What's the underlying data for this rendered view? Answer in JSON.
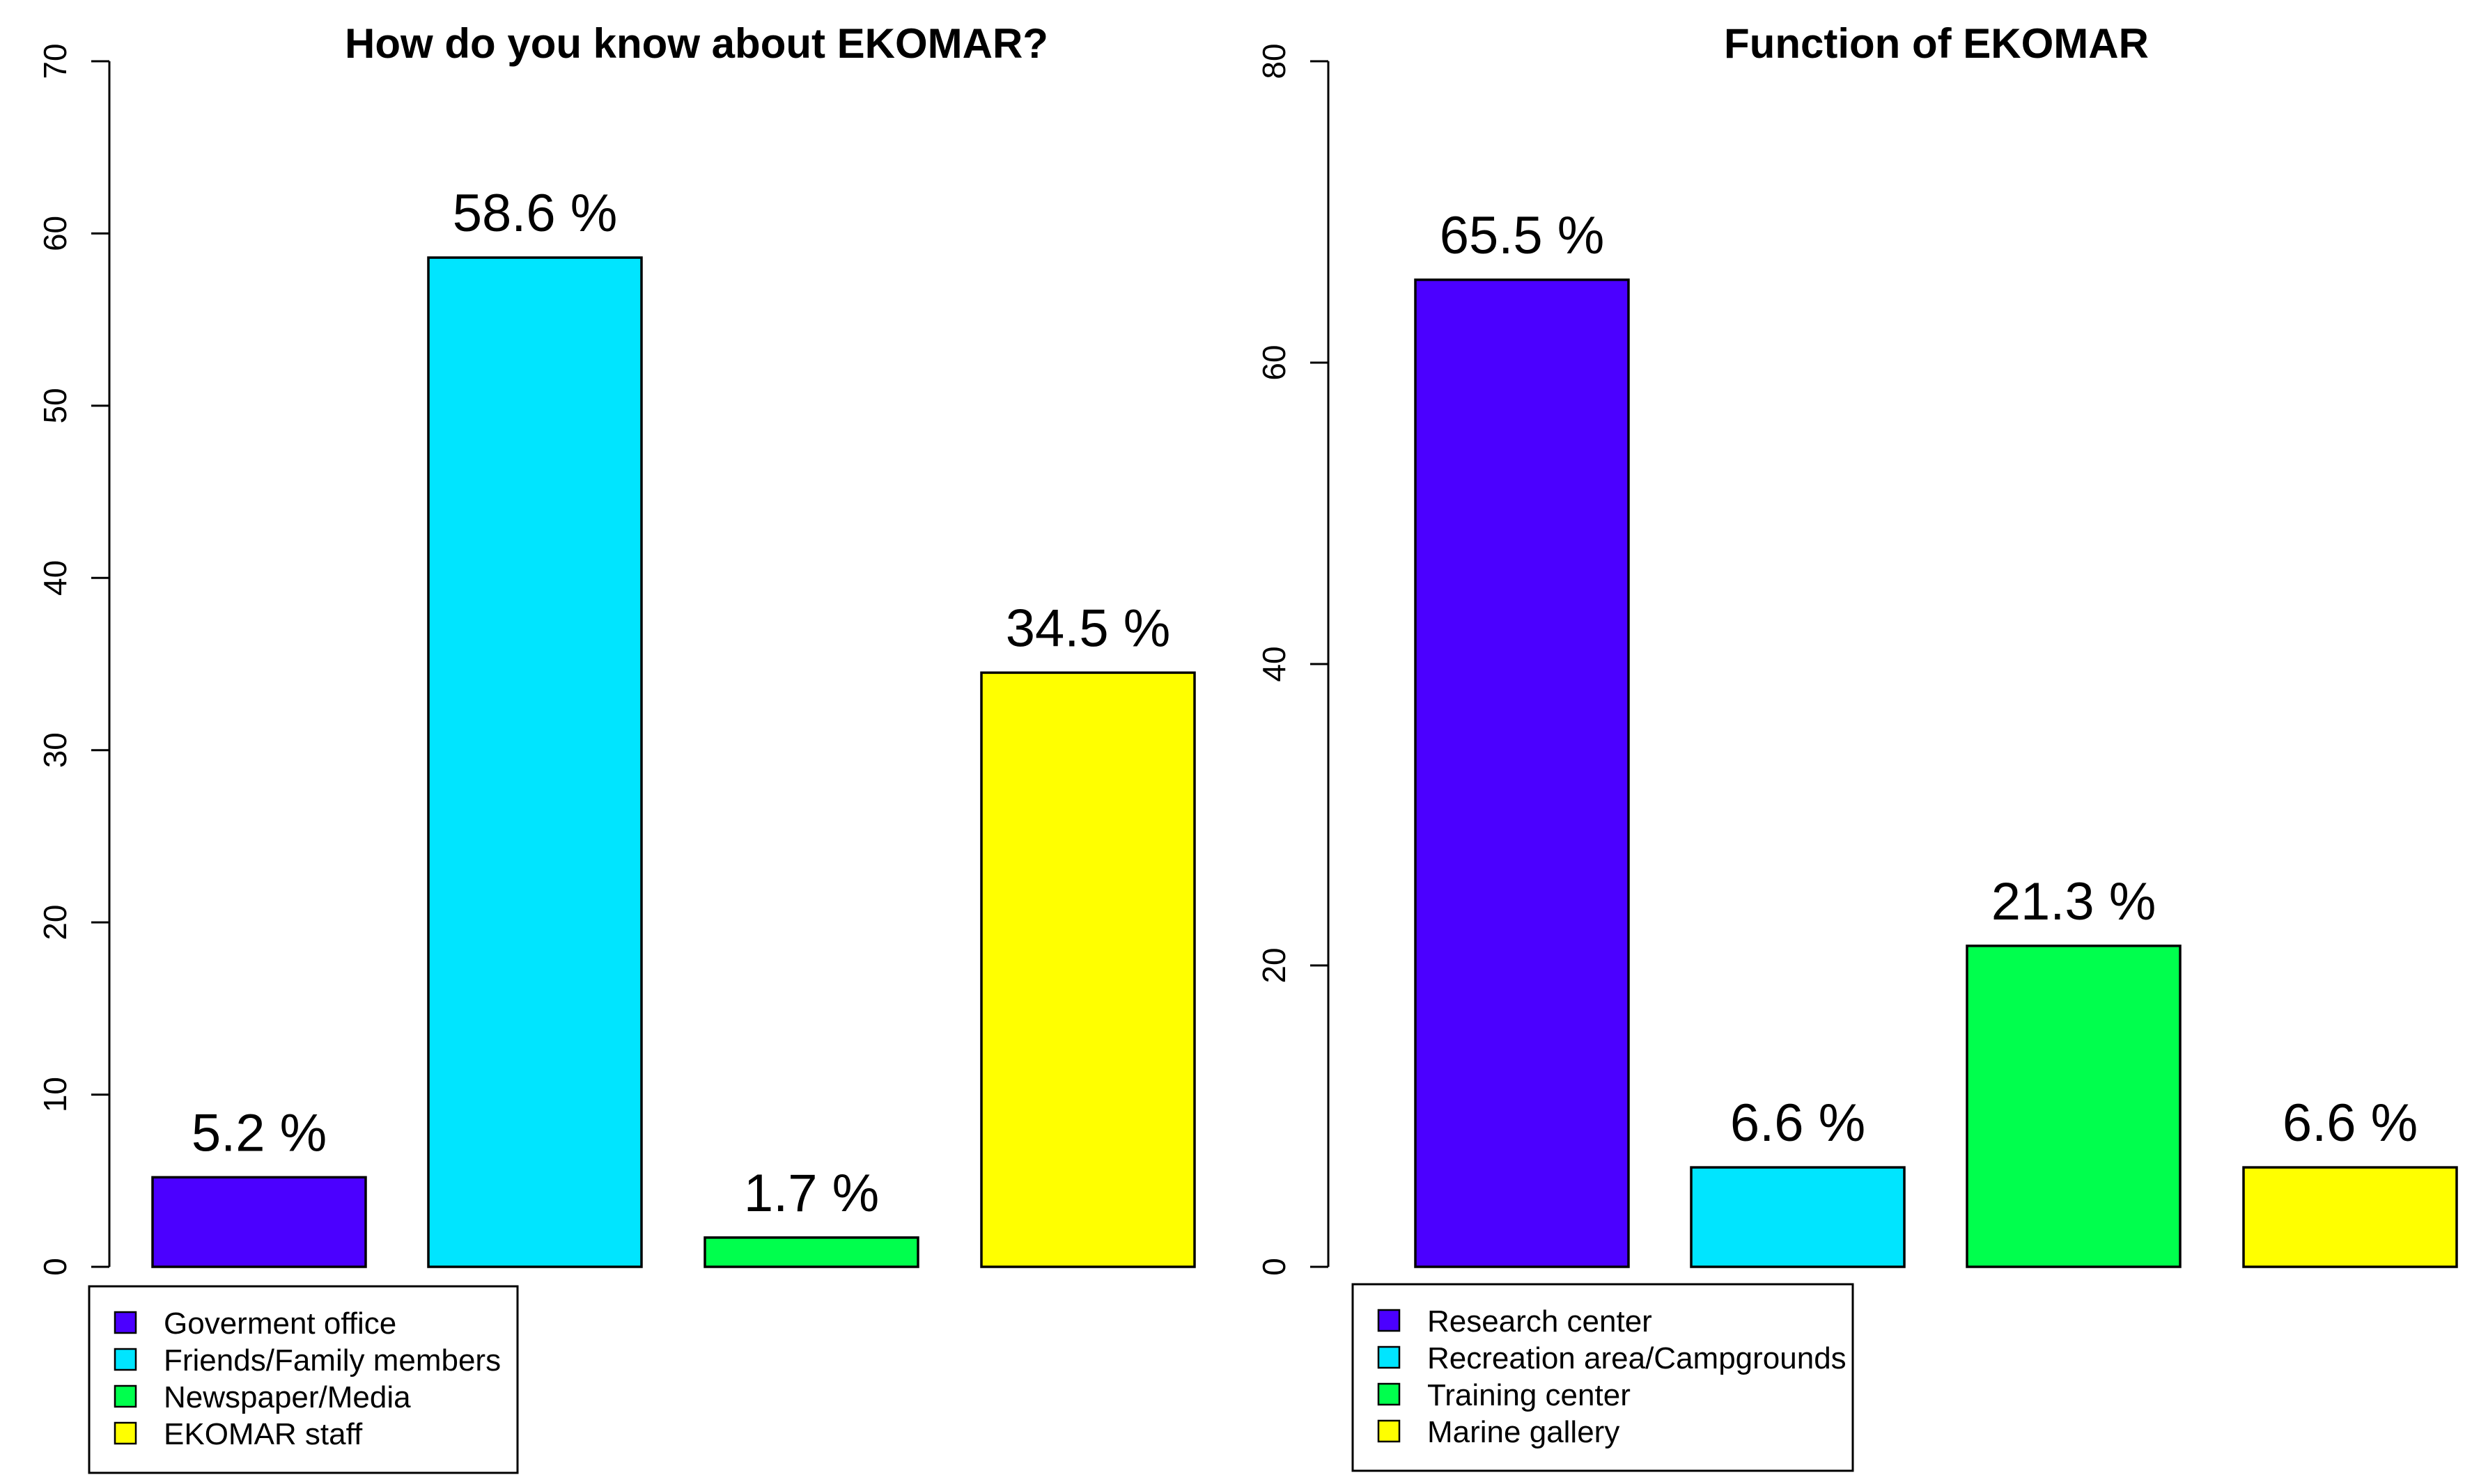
{
  "chart_data": [
    {
      "type": "bar",
      "title": "How do you know about EKOMAR?",
      "categories": [
        "Goverment office",
        "Friends/Family members",
        "Newspaper/Media",
        "EKOMAR staff"
      ],
      "values": [
        5.2,
        58.6,
        1.7,
        34.5
      ],
      "data_labels": [
        "5.2 %",
        "58.6 %",
        "1.7 %",
        "34.5 %"
      ],
      "colors": [
        "#4B00FF",
        "#00E5FF",
        "#00FF4D",
        "#FFFF00"
      ],
      "ylim": [
        0,
        70
      ],
      "yticks": [
        0,
        10,
        20,
        30,
        40,
        50,
        60,
        70
      ],
      "xlabel": "",
      "ylabel": "",
      "legend": {
        "position": "bottom-left",
        "entries": [
          "Goverment office",
          "Friends/Family members",
          "Newspaper/Media",
          "EKOMAR staff"
        ]
      }
    },
    {
      "type": "bar",
      "title": "Function of EKOMAR",
      "categories": [
        "Research center",
        "Recreation area/Campgrounds",
        "Training center",
        "Marine gallery"
      ],
      "values": [
        65.5,
        6.6,
        21.3,
        6.6
      ],
      "data_labels": [
        "65.5 %",
        "6.6 %",
        "21.3 %",
        "6.6 %"
      ],
      "colors": [
        "#4B00FF",
        "#00E5FF",
        "#00FF4D",
        "#FFFF00"
      ],
      "ylim": [
        0,
        80
      ],
      "yticks": [
        0,
        20,
        40,
        60,
        80
      ],
      "xlabel": "",
      "ylabel": "",
      "legend": {
        "position": "bottom-left",
        "entries": [
          "Research center",
          "Recreation area/Campgrounds",
          "Training center",
          "Marine gallery"
        ]
      }
    }
  ]
}
